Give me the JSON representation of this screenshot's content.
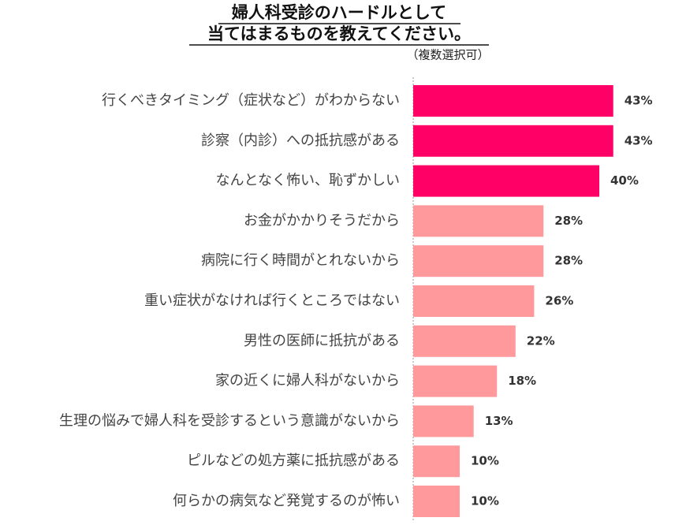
{
  "chart_data": {
    "type": "bar",
    "orientation": "horizontal",
    "title": [
      "婦人科受診のハードルとして",
      "当てはまるものを教えてください。"
    ],
    "subtitle": "（複数選択可）",
    "categories": [
      "行くべきタイミング（症状など）がわからない",
      "診察（内診）への抵抗感がある",
      "なんとなく怖い、恥ずかしい",
      "お金がかかりそうだから",
      "病院に行く時間がとれないから",
      "重い症状がなければ行くところではない",
      "男性の医師に抵抗がある",
      "家の近くに婦人科がないから",
      "生理の悩みで婦人科を受診するという意識がないから",
      "ピルなどの処方薬に抵抗感がある",
      "何らかの病気など発覚するのが怖い"
    ],
    "values": [
      43,
      43,
      40,
      28,
      28,
      26,
      22,
      18,
      13,
      10,
      10
    ],
    "value_labels": [
      "43%",
      "43%",
      "40%",
      "28%",
      "28%",
      "26%",
      "22%",
      "18%",
      "13%",
      "10%",
      "10%"
    ],
    "colors": [
      "#ff0066",
      "#ff0066",
      "#ff0066",
      "#ff999c",
      "#ff999c",
      "#ff999c",
      "#ff999c",
      "#ff999c",
      "#ff999c",
      "#ff999c",
      "#ff999c"
    ]
  }
}
